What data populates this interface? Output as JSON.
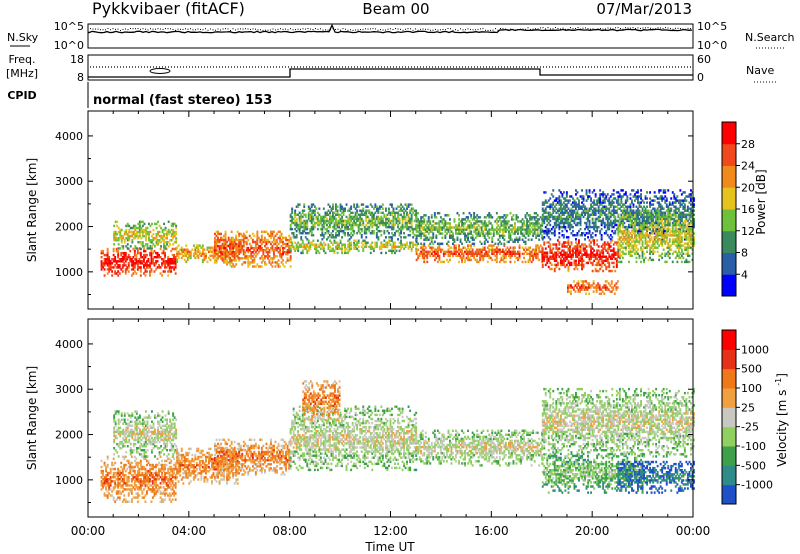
{
  "header": {
    "station": "Pykkvibaer (fitACF)",
    "beam": "Beam 00",
    "date": "07/Mar/2013"
  },
  "noise_panel": {
    "left_label": "N.Sky",
    "left_ticks": [
      "10^5",
      "10^0"
    ],
    "right_label": "N.Search",
    "right_ticks": [
      "10^5",
      "10^0"
    ]
  },
  "freq_panel": {
    "left_label_1": "Freq.",
    "left_label_2": "[MHz]",
    "left_ticks": [
      "18",
      "8"
    ],
    "right_label": "Nave",
    "right_ticks": [
      "60",
      "0"
    ]
  },
  "cpid": {
    "label": "CPID",
    "text": "normal (fast stereo) 153"
  },
  "chart_data": [
    {
      "type": "heatmap",
      "title": "",
      "xlabel": "Time UT",
      "ylabel": "Slant Range [km]",
      "x_range_hours": [
        0,
        24
      ],
      "xlim": [
        "00:00",
        "00:00"
      ],
      "x_tick_labels": [
        "00:00",
        "04:00",
        "08:00",
        "12:00",
        "16:00",
        "20:00",
        "00:00"
      ],
      "ylim": [
        180,
        4550
      ],
      "y_tick_labels": [
        "1000",
        "2000",
        "3000",
        "4000"
      ],
      "colorbar": {
        "label": "Power [dB]",
        "tick_labels": [
          "4",
          "8",
          "12",
          "16",
          "20",
          "24",
          "28"
        ],
        "colors": [
          "#0000ff",
          "#2a5fa8",
          "#3b8a5e",
          "#6fc03a",
          "#e6c21e",
          "#f08a1c",
          "#f04a1c",
          "#ff0000"
        ]
      },
      "echo_bands": [
        {
          "t": [
            0.5,
            3.5
          ],
          "range": [
            900,
            1500
          ],
          "level": 7
        },
        {
          "t": [
            1.0,
            3.5
          ],
          "range": [
            1500,
            2100
          ],
          "level": 4
        },
        {
          "t": [
            3.5,
            6.0
          ],
          "range": [
            1200,
            1600
          ],
          "level": 5
        },
        {
          "t": [
            5.0,
            8.0
          ],
          "range": [
            1100,
            1900
          ],
          "level": 6
        },
        {
          "t": [
            8.0,
            13.0
          ],
          "range": [
            1700,
            2500
          ],
          "level": 3
        },
        {
          "t": [
            8.0,
            13.0
          ],
          "range": [
            1400,
            1700
          ],
          "level": 4
        },
        {
          "t": [
            13.0,
            18.0
          ],
          "range": [
            1200,
            1600
          ],
          "level": 6
        },
        {
          "t": [
            13.0,
            18.0
          ],
          "range": [
            1600,
            2300
          ],
          "level": 3
        },
        {
          "t": [
            18.0,
            21.0
          ],
          "range": [
            1000,
            1700
          ],
          "level": 7
        },
        {
          "t": [
            18.0,
            24.0
          ],
          "range": [
            1700,
            2800
          ],
          "level": 2
        },
        {
          "t": [
            19.0,
            21.0
          ],
          "range": [
            500,
            800
          ],
          "level": 6
        },
        {
          "t": [
            21.0,
            24.0
          ],
          "range": [
            1200,
            2300
          ],
          "level": 4
        }
      ]
    },
    {
      "type": "heatmap",
      "title": "",
      "xlabel": "Time UT",
      "ylabel": "Slant Range [km]",
      "x_range_hours": [
        0,
        24
      ],
      "x_tick_labels": [
        "00:00",
        "04:00",
        "08:00",
        "12:00",
        "16:00",
        "20:00",
        "00:00"
      ],
      "ylim": [
        180,
        4550
      ],
      "y_tick_labels": [
        "1000",
        "2000",
        "3000",
        "4000"
      ],
      "colorbar": {
        "label": "Velocity [m s^-1]",
        "tick_labels": [
          "1000",
          "500",
          "100",
          "25",
          "-25",
          "-100",
          "-500",
          "-1000"
        ],
        "colors": [
          "#2050c8",
          "#2f8a8a",
          "#3ea04a",
          "#8fd060",
          "#c8c8c0",
          "#f0a040",
          "#f07818",
          "#e83018",
          "#ff0000"
        ]
      },
      "echo_bands": [
        {
          "t": [
            0.5,
            3.5
          ],
          "range": [
            500,
            1500
          ],
          "level": 6
        },
        {
          "t": [
            1.0,
            3.5
          ],
          "range": [
            1500,
            2500
          ],
          "level": 4
        },
        {
          "t": [
            3.5,
            6.0
          ],
          "range": [
            900,
            1700
          ],
          "level": 6
        },
        {
          "t": [
            5.0,
            8.0
          ],
          "range": [
            1100,
            1900
          ],
          "level": 6
        },
        {
          "t": [
            8.0,
            13.0
          ],
          "range": [
            1200,
            2600
          ],
          "level": 4
        },
        {
          "t": [
            8.5,
            10.0
          ],
          "range": [
            2300,
            3200
          ],
          "level": 6
        },
        {
          "t": [
            13.0,
            18.0
          ],
          "range": [
            1300,
            2100
          ],
          "level": 4
        },
        {
          "t": [
            18.0,
            22.0
          ],
          "range": [
            700,
            1600
          ],
          "level": 3
        },
        {
          "t": [
            18.0,
            24.0
          ],
          "range": [
            1500,
            3000
          ],
          "level": 4
        },
        {
          "t": [
            21.0,
            24.0
          ],
          "range": [
            700,
            1400
          ],
          "level": 1
        }
      ]
    }
  ]
}
